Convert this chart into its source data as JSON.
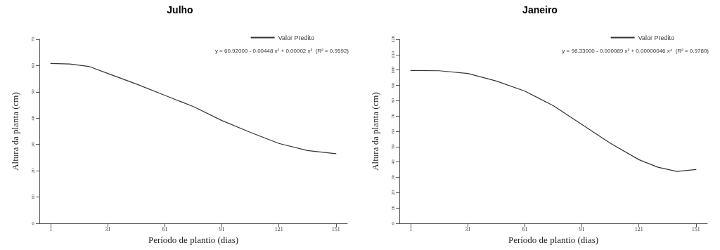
{
  "chart_data": [
    {
      "type": "line",
      "title": "Julho",
      "xlabel": "Período de plantio (dias)",
      "ylabel": "Altura da planta (cm)",
      "x": [
        1,
        11,
        21,
        31,
        46,
        61,
        76,
        91,
        106,
        121,
        136,
        151
      ],
      "series": [
        {
          "name": "Valor Predito",
          "color": "#333333",
          "values": [
            60.8,
            60.6,
            59.7,
            57.0,
            53.0,
            48.7,
            44.4,
            39.1,
            34.6,
            30.4,
            27.7,
            26.5
          ]
        }
      ],
      "xlim": [
        -5,
        157
      ],
      "xticks": [
        1,
        31,
        61,
        91,
        121,
        151
      ],
      "ylim": [
        0,
        70
      ],
      "yticks": [
        0,
        10,
        20,
        30,
        40,
        50,
        60,
        70
      ],
      "annotations": [
        "y = 60.92000 - 0.00448 x² + 0.00002 x³  (R² = 0.9592)"
      ],
      "legend": "top right",
      "grid": false,
      "marker": "none",
      "line_style": "solid"
    },
    {
      "type": "line",
      "title": "Janeiro",
      "xlabel": "Período de plantio (dias)",
      "ylabel": "Altura da planta (cm)",
      "x": [
        1,
        16,
        31,
        46,
        61,
        76,
        91,
        106,
        121,
        131,
        141,
        151
      ],
      "series": [
        {
          "name": "Valor Predito",
          "color": "#333333",
          "values": [
            99.7,
            99.5,
            97.7,
            92.8,
            86.2,
            76.7,
            64.5,
            52.2,
            41.5,
            36.6,
            33.8,
            35.1
          ]
        }
      ],
      "xlim": [
        -5,
        157
      ],
      "xticks": [
        1,
        31,
        61,
        91,
        121,
        151
      ],
      "ylim": [
        0,
        120
      ],
      "yticks": [
        0,
        10,
        20,
        30,
        40,
        50,
        60,
        70,
        80,
        90,
        100,
        110,
        120
      ],
      "annotations": [
        "y = 98.33000 - 0.000089 x³ + 0.00000046 x⁴  (R² = 0.9780)"
      ],
      "legend": "top right",
      "grid": false,
      "marker": "none",
      "line_style": "solid"
    }
  ]
}
